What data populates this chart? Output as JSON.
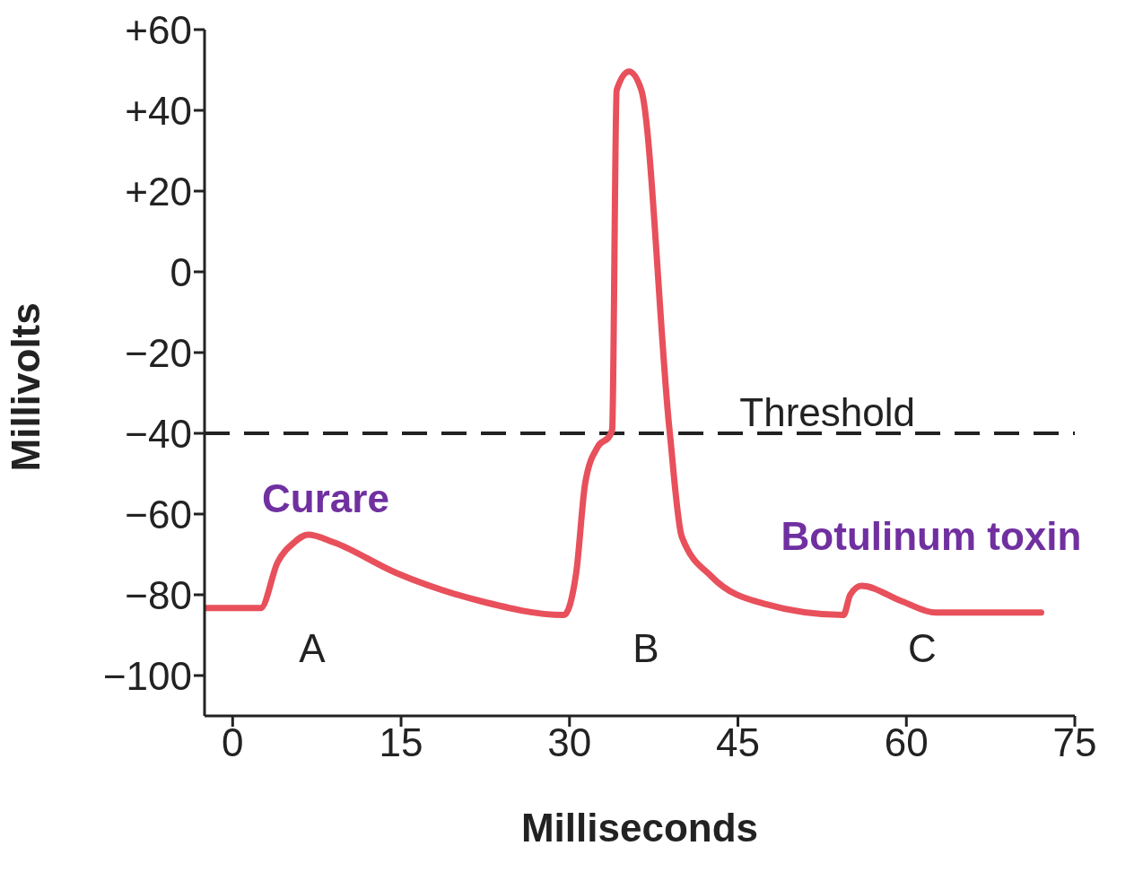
{
  "chart_data": {
    "type": "line",
    "xlabel": "Milliseconds",
    "ylabel": "Millivolts",
    "x": [
      -2.4,
      2.5,
      4,
      5.5,
      6.7,
      9,
      14.5,
      22,
      29.5,
      30.6,
      31.4,
      32.5,
      33.6,
      33.8,
      34.2,
      35.3,
      36.4,
      38.9,
      40,
      42.7,
      47.3,
      54.4,
      55,
      56,
      59.6,
      62.6,
      72
    ],
    "series": [
      {
        "color": "#e8505b",
        "values": [
          -83.3,
          -83.3,
          -72,
          -67,
          -65.1,
          -67,
          -74.5,
          -81.5,
          -85,
          -74.5,
          -52.3,
          -43.4,
          -40.5,
          -39,
          45,
          49.6,
          45,
          -39,
          -65.6,
          -75.6,
          -82.2,
          -85,
          -80,
          -77.8,
          -81.6,
          -84.4,
          -84.4
        ]
      }
    ],
    "xlim": [
      -2.5,
      75
    ],
    "xticks": [
      0,
      15,
      30,
      45,
      60,
      75
    ],
    "ylim": [
      -110,
      60
    ],
    "yticks": [
      {
        "value": 60,
        "label": "+60"
      },
      {
        "value": 40,
        "label": "+40"
      },
      {
        "value": 20,
        "label": "+20"
      },
      0,
      {
        "value": -20,
        "label": "−20"
      },
      {
        "value": -40,
        "label": "−40"
      },
      {
        "value": -60,
        "label": "−60"
      },
      {
        "value": -80,
        "label": "−80"
      },
      {
        "value": -100,
        "label": "−100"
      }
    ],
    "ref_lines": [
      {
        "axis": "y",
        "value": -40,
        "label": "Threshold",
        "color": "#222222",
        "line_style": "dashed"
      }
    ],
    "annotations": [
      "A",
      "B",
      "C",
      "Curare",
      "Botulinum toxin"
    ],
    "grid": false,
    "marker": "none",
    "line_style": "solid"
  }
}
